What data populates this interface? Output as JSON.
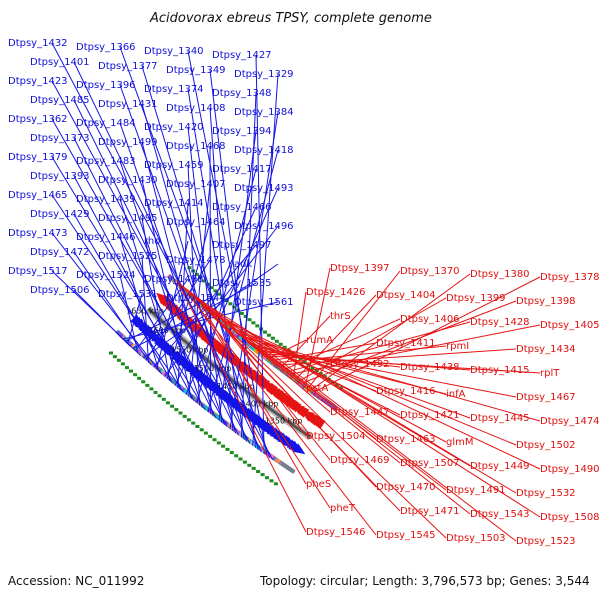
{
  "title": "Acidovorax ebreus TPSY, complete genome",
  "footer": {
    "accession": "Accession: NC_011992",
    "summary": "Topology: circular; Length: 3,796,573 bp; Genes: 3,544"
  },
  "colors": {
    "forward": "#1414e6",
    "reverse": "#e61414",
    "backbone": "#555555",
    "label_forward": "#1010d8",
    "label_reverse": "#e01010",
    "tick_green": "#1f8a1f"
  },
  "scale_marks": [
    "1350 kbp",
    "1400 kbp",
    "1450 kbp",
    "1500 kbp",
    "1550 kbp",
    "1600 kbp",
    "1650 kbp"
  ],
  "forward_labels": [
    "Dtpsy_1432",
    "Dtpsy_1366",
    "Dtpsy_1340",
    "Dtpsy_1427",
    "Dtpsy_1401",
    "Dtpsy_1377",
    "Dtpsy_1349",
    "Dtpsy_1329",
    "Dtpsy_1423",
    "Dtpsy_1396",
    "Dtpsy_1374",
    "Dtpsy_1348",
    "Dtpsy_1485",
    "Dtpsy_1431",
    "Dtpsy_1408",
    "Dtpsy_1384",
    "Dtpsy_1362",
    "Dtpsy_1484",
    "Dtpsy_1420",
    "Dtpsy_1394",
    "Dtpsy_1373",
    "Dtpsy_1499",
    "Dtpsy_1468",
    "Dtpsy_1418",
    "Dtpsy_1379",
    "Dtpsy_1483",
    "Dtpsy_1459",
    "Dtpsy_1417",
    "Dtpsy_1393",
    "Dtpsy_1430",
    "Dtpsy_1407",
    "Dtpsy_1493",
    "Dtpsy_1465",
    "Dtpsy_1439",
    "Dtpsy_1414",
    "Dtpsy_1466",
    "Dtpsy_1429",
    "Dtpsy_1495",
    "Dtpsy_1464",
    "Dtpsy_1496",
    "Dtpsy_1473",
    "Dtpsy_1446",
    "rho",
    "Dtpsy_1497",
    "Dtpsy_1472",
    "Dtpsy_1525",
    "Dtpsy_1478",
    "adk",
    "Dtpsy_1517",
    "Dtpsy_1524",
    "Dtpsy_1498",
    "Dtpsy_1535",
    "Dtpsy_1506",
    "Dtpsy_1531",
    "Dtpsy_1544",
    "Dtpsy_1561"
  ],
  "reverse_labels": [
    "Dtpsy_1378",
    "Dtpsy_1380",
    "Dtpsy_1370",
    "Dtpsy_1397",
    "Dtpsy_1398",
    "Dtpsy_1399",
    "Dtpsy_1404",
    "Dtpsy_1426",
    "Dtpsy_1405",
    "Dtpsy_1428",
    "Dtpsy_1406",
    "thrS",
    "Dtpsy_1434",
    "rpmI",
    "Dtpsy_1411",
    "rumA",
    "rplT",
    "Dtpsy_1415",
    "Dtpsy_1438",
    "Dtpsy_1492",
    "Dtpsy_1467",
    "infA",
    "Dtpsy_1416",
    "pstA",
    "Dtpsy_1474",
    "Dtpsy_1445",
    "Dtpsy_1421",
    "Dtpsy_1447",
    "Dtpsy_1502",
    "glmM",
    "Dtpsy_1463",
    "Dtpsy_1504",
    "Dtpsy_1490",
    "Dtpsy_1449",
    "Dtpsy_1507",
    "Dtpsy_1469",
    "Dtpsy_1532",
    "Dtpsy_1491",
    "Dtpsy_1470",
    "pheS",
    "Dtpsy_1508",
    "Dtpsy_1543",
    "Dtpsy_1471",
    "pheT",
    "Dtpsy_1523",
    "Dtpsy_1503",
    "Dtpsy_1545",
    "Dtpsy_1546"
  ]
}
